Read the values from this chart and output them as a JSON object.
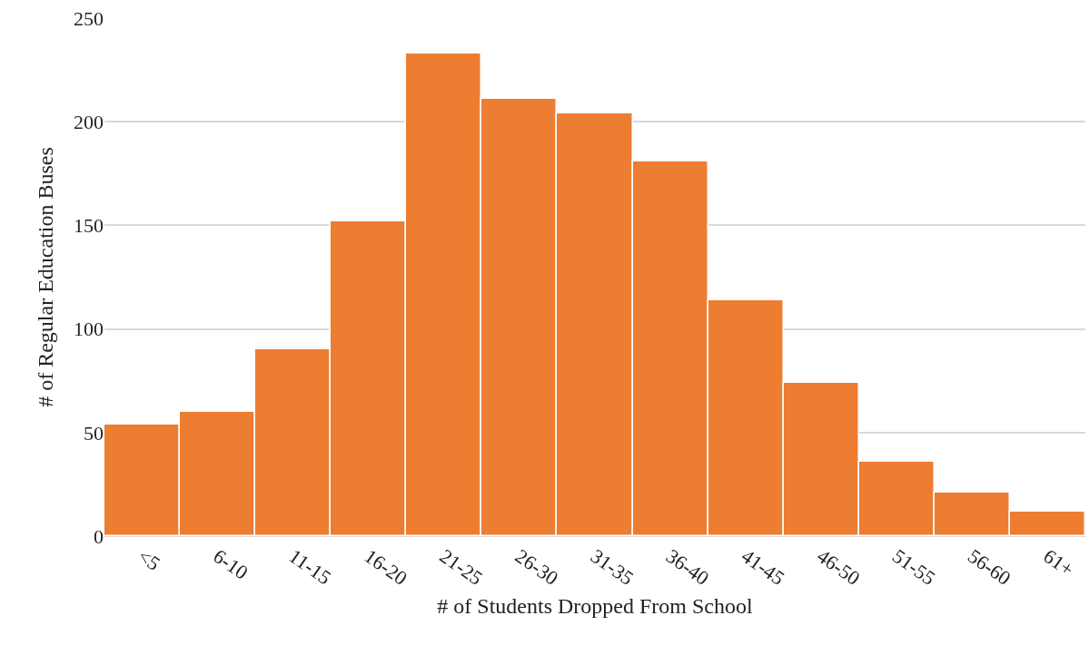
{
  "chart_data": {
    "type": "bar",
    "xlabel": "# of Students Dropped From School",
    "ylabel": "# of Regular Education Buses",
    "categories": [
      "<5",
      "6-10",
      "11-15",
      "16-20",
      "21-25",
      "26-30",
      "31-35",
      "36-40",
      "41-45",
      "46-50",
      "51-55",
      "56-60",
      "61+"
    ],
    "values": [
      54,
      60,
      90,
      152,
      233,
      211,
      204,
      181,
      114,
      74,
      36,
      21,
      12
    ],
    "color": "#ed7d31",
    "ylim": [
      0,
      250
    ],
    "yticks": [
      0,
      50,
      100,
      150,
      200,
      250
    ],
    "grid": "y",
    "legend": false
  }
}
